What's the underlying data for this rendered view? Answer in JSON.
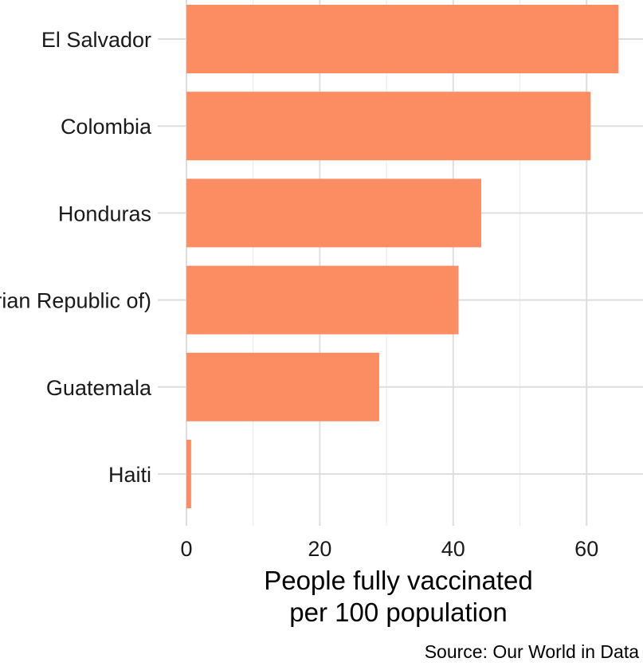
{
  "chart_data": {
    "type": "bar",
    "orientation": "horizontal",
    "categories": [
      "El Salvador",
      "Colombia",
      "Honduras",
      "Venezuela (Bolivarian Republic of)",
      "Guatemala",
      "Haiti"
    ],
    "values": [
      64.8,
      60.6,
      44.2,
      40.8,
      28.9,
      0.7
    ],
    "xlabel_lines": [
      "People fully vaccinated",
      "per 100 population"
    ],
    "xlim": [
      0,
      68
    ],
    "xticks": [
      0,
      20,
      40,
      60
    ],
    "caption": "Source: Our World in Data",
    "grid": true,
    "legend": "none"
  },
  "colors": {
    "bar": "#fc8d62",
    "grid": "#dedede",
    "text": "#1a1a1a"
  }
}
